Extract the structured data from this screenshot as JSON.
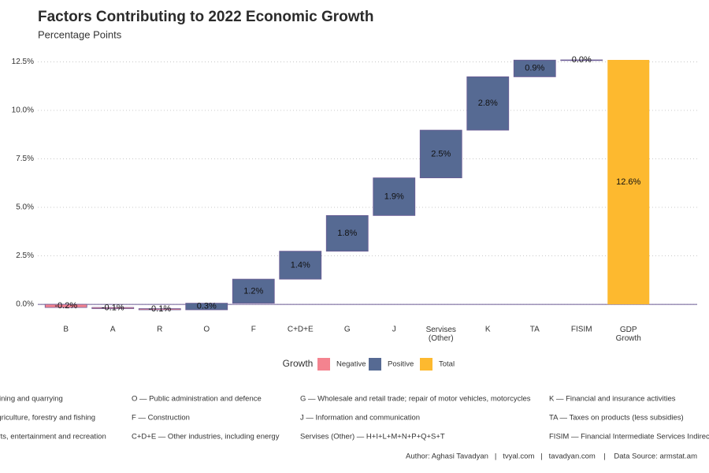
{
  "chart_data": {
    "type": "waterfall",
    "title": "Factors Contributing to 2022 Economic Growth",
    "subtitle": "Percentage Points",
    "categories": [
      "B",
      "A",
      "R",
      "O",
      "F",
      "C+D+E",
      "G",
      "J",
      "Servises\n(Other)",
      "K",
      "TA",
      "FISIM",
      "GDP\nGrowth"
    ],
    "values": [
      -0.16,
      -0.06,
      -0.06,
      0.34,
      1.24,
      1.44,
      1.84,
      1.94,
      2.46,
      2.75,
      0.86,
      0.01,
      12.6
    ],
    "value_labels": [
      "-0.2%",
      "-0.1%",
      "-0.1%",
      "0.3%",
      "1.2%",
      "1.4%",
      "1.8%",
      "1.9%",
      "2.5%",
      "2.8%",
      "0.9%",
      "0.0%",
      "12.6%"
    ],
    "measure": [
      "relative",
      "relative",
      "relative",
      "relative",
      "relative",
      "relative",
      "relative",
      "relative",
      "relative",
      "relative",
      "relative",
      "relative",
      "total"
    ],
    "colors": {
      "negative": "#f4838f",
      "positive": "#566a93",
      "total": "#fdb92f"
    },
    "ylim": [
      -0.35,
      12.75
    ],
    "yticks": [
      {
        "value": 0,
        "label": "0.0%"
      },
      {
        "value": 2.5,
        "label": "2.5%"
      },
      {
        "value": 5,
        "label": "5.0%"
      },
      {
        "value": 7.5,
        "label": "7.5%"
      },
      {
        "value": 10,
        "label": "10.0%"
      },
      {
        "value": 12.5,
        "label": "12.5%"
      }
    ],
    "grid": true,
    "legend": {
      "title": "Growth",
      "position": "bottom",
      "items": [
        {
          "name": "Negative",
          "color": "#f4838f"
        },
        {
          "name": "Positive",
          "color": "#566a93"
        },
        {
          "name": "Total",
          "color": "#fdb92f"
        }
      ]
    },
    "notes": [
      [
        "B — Mining and quarrying",
        "A — Agriculture, forestry and fishing",
        "R — Arts, entertainment and recreation"
      ],
      [
        "O — Public administration and defence",
        "F — Construction",
        "C+D+E — Other industries, including energy"
      ],
      [
        "G — Wholesale and retail trade; repair of motor vehicles, motorcycles",
        "J — Information and communication",
        "Servises (Other) — H+I+L+M+N+P+Q+S+T"
      ],
      [
        "K — Financial and insurance activities",
        "TA — Taxes on products (less subsidies)",
        "FISIM — Financial Intermediate Services Indirectly Measured"
      ]
    ],
    "caption": "Author: Aghasi Tavadyan   |   tvyal.com   |   tavadyan.com    |    Data Source: armstat.am"
  }
}
